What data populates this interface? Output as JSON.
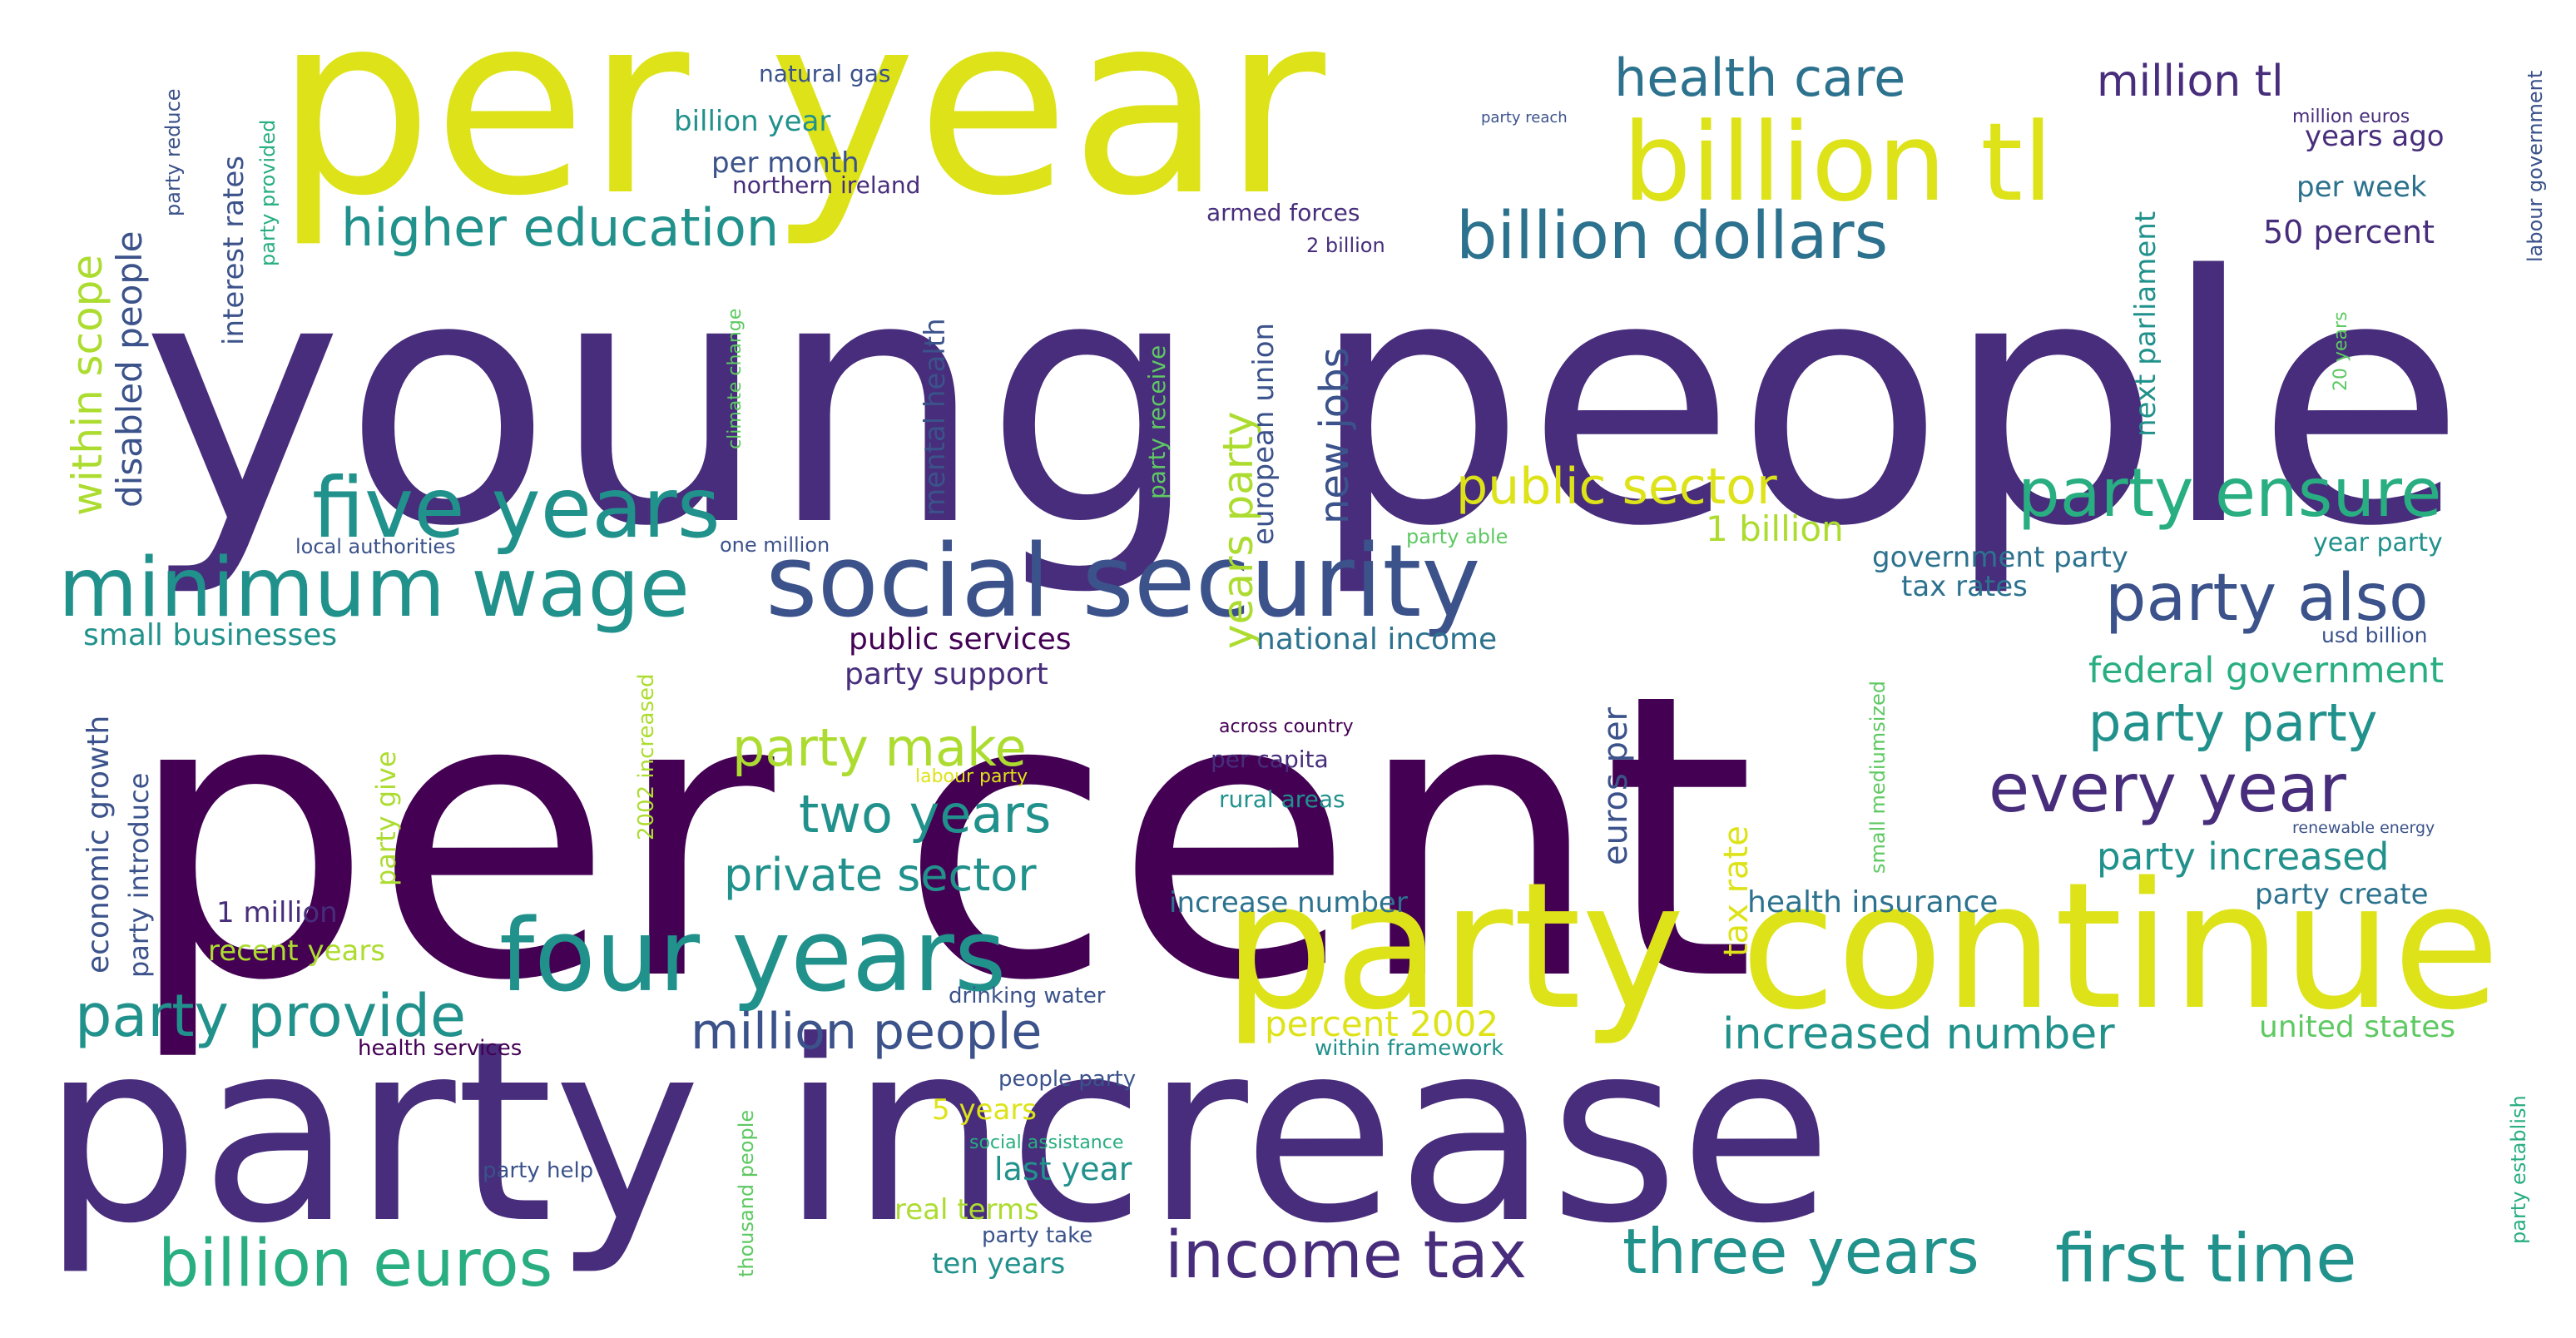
{
  "palette": {
    "deep-purple": "#440154",
    "purple": "#472d7b",
    "indigo": "#3b528b",
    "slate-blue": "#2c728e",
    "teal": "#21918c",
    "sea-green": "#28ae80",
    "green": "#5ec962",
    "lime": "#addc30",
    "yellow": "#dde318"
  },
  "words": [
    {
      "text": "per cent",
      "color": "#440154"
    },
    {
      "text": "young people",
      "color": "#472d7b"
    },
    {
      "text": "party increase",
      "color": "#472d7b"
    },
    {
      "text": "per year",
      "color": "#dde318"
    },
    {
      "text": "party continue",
      "color": "#dde318"
    },
    {
      "text": "billion tl",
      "color": "#dde318"
    },
    {
      "text": "social security",
      "color": "#3b528b"
    },
    {
      "text": "four years",
      "color": "#21918c"
    },
    {
      "text": "minimum wage",
      "color": "#21918c"
    },
    {
      "text": "five years",
      "color": "#21918c"
    },
    {
      "text": "billion dollars",
      "color": "#2c728e"
    },
    {
      "text": "party ensure",
      "color": "#28ae80"
    },
    {
      "text": "party also",
      "color": "#3b528b"
    },
    {
      "text": "every year",
      "color": "#472d7b"
    },
    {
      "text": "first time",
      "color": "#21918c"
    },
    {
      "text": "three years",
      "color": "#21918c"
    },
    {
      "text": "income tax",
      "color": "#472d7b"
    },
    {
      "text": "billion euros",
      "color": "#28ae80"
    },
    {
      "text": "party provide",
      "color": "#21918c"
    },
    {
      "text": "million people",
      "color": "#3b528b"
    },
    {
      "text": "higher education",
      "color": "#21918c"
    },
    {
      "text": "health care",
      "color": "#2c728e"
    },
    {
      "text": "public sector",
      "color": "#dde318"
    },
    {
      "text": "party make",
      "color": "#addc30"
    },
    {
      "text": "two years",
      "color": "#21918c"
    },
    {
      "text": "party party",
      "color": "#21918c"
    },
    {
      "text": "increased number",
      "color": "#21918c"
    },
    {
      "text": "private sector",
      "color": "#21918c"
    },
    {
      "text": "million tl",
      "color": "#472d7b"
    },
    {
      "text": "years party",
      "color": "#addc30"
    },
    {
      "text": "within scope",
      "color": "#addc30"
    },
    {
      "text": "party increased",
      "color": "#21918c"
    },
    {
      "text": "new jobs",
      "color": "#3b528b"
    },
    {
      "text": "disabled people",
      "color": "#3b528b"
    },
    {
      "text": "federal government",
      "color": "#28ae80"
    },
    {
      "text": "1 billion",
      "color": "#addc30"
    },
    {
      "text": "percent 2002",
      "color": "#dde318"
    },
    {
      "text": "euros per",
      "color": "#3b528b"
    },
    {
      "text": "small businesses",
      "color": "#21918c"
    },
    {
      "text": "public services",
      "color": "#440154"
    },
    {
      "text": "national income",
      "color": "#2c728e"
    },
    {
      "text": "party support",
      "color": "#472d7b"
    },
    {
      "text": "health insurance",
      "color": "#2c728e"
    },
    {
      "text": "tax rate",
      "color": "#dde318"
    },
    {
      "text": "government party",
      "color": "#2c728e"
    },
    {
      "text": "tax rates",
      "color": "#2c728e"
    },
    {
      "text": "50 percent",
      "color": "#472d7b"
    },
    {
      "text": "interest rates",
      "color": "#3b528b"
    },
    {
      "text": "economic growth",
      "color": "#3b528b"
    },
    {
      "text": "united states",
      "color": "#5ec962"
    },
    {
      "text": "mental health",
      "color": "#3b528b"
    },
    {
      "text": "european union",
      "color": "#3b528b"
    },
    {
      "text": "next parliament",
      "color": "#21918c"
    },
    {
      "text": "party introduce",
      "color": "#3b528b"
    },
    {
      "text": "increase number",
      "color": "#2c728e"
    },
    {
      "text": "per week",
      "color": "#2c728e"
    },
    {
      "text": "years ago",
      "color": "#472d7b"
    },
    {
      "text": "recent years",
      "color": "#addc30"
    },
    {
      "text": "party create",
      "color": "#2c728e"
    },
    {
      "text": "last year",
      "color": "#21918c"
    },
    {
      "text": "billion year",
      "color": "#21918c"
    },
    {
      "text": "per month",
      "color": "#3b528b"
    },
    {
      "text": "1 million",
      "color": "#472d7b"
    },
    {
      "text": "year party",
      "color": "#21918c"
    },
    {
      "text": "ten years",
      "color": "#21918c"
    },
    {
      "text": "real terms",
      "color": "#addc30"
    },
    {
      "text": "5 years",
      "color": "#dde318"
    },
    {
      "text": "party give",
      "color": "#addc30"
    },
    {
      "text": "party receive",
      "color": "#5ec962"
    },
    {
      "text": "2002 increased",
      "color": "#addc30"
    },
    {
      "text": "small mediumsized",
      "color": "#5ec962"
    },
    {
      "text": "labour government",
      "color": "#3b528b"
    },
    {
      "text": "party establish",
      "color": "#28ae80"
    },
    {
      "text": "thousand people",
      "color": "#5ec962"
    },
    {
      "text": "per capita",
      "color": "#472d7b"
    },
    {
      "text": "rural areas",
      "color": "#21918c"
    },
    {
      "text": "natural gas",
      "color": "#3b528b"
    },
    {
      "text": "northern ireland",
      "color": "#472d7b"
    },
    {
      "text": "armed forces",
      "color": "#472d7b"
    },
    {
      "text": "party reduce",
      "color": "#3b528b"
    },
    {
      "text": "party provided",
      "color": "#28ae80"
    },
    {
      "text": "climate change",
      "color": "#5ec962"
    },
    {
      "text": "2 billion",
      "color": "#472d7b"
    },
    {
      "text": "local authorities",
      "color": "#3b528b"
    },
    {
      "text": "one million",
      "color": "#3b528b"
    },
    {
      "text": "party able",
      "color": "#5ec962"
    },
    {
      "text": "usd billion",
      "color": "#3b528b"
    },
    {
      "text": "drinking water",
      "color": "#3b528b"
    },
    {
      "text": "health services",
      "color": "#440154"
    },
    {
      "text": "within framework",
      "color": "#21918c"
    },
    {
      "text": "people party",
      "color": "#3b528b"
    },
    {
      "text": "social assistance",
      "color": "#28ae80"
    },
    {
      "text": "party help",
      "color": "#3b528b"
    },
    {
      "text": "party take",
      "color": "#3b528b"
    },
    {
      "text": "across country",
      "color": "#440154"
    },
    {
      "text": "labour party",
      "color": "#dde318"
    },
    {
      "text": "renewable energy",
      "color": "#3b528b"
    },
    {
      "text": "20 years",
      "color": "#5ec962"
    },
    {
      "text": "million euros",
      "color": "#472d7b"
    },
    {
      "text": "party reach",
      "color": "#3b528b"
    }
  ]
}
